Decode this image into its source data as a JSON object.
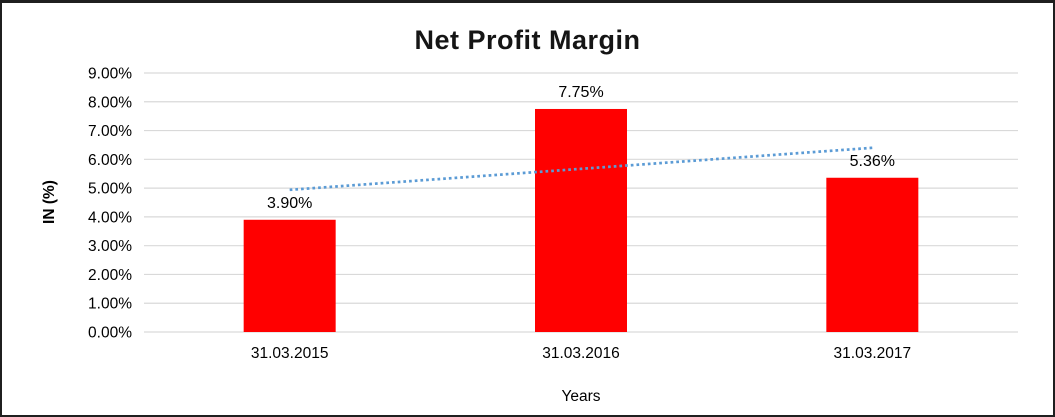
{
  "chart_data": {
    "type": "bar",
    "title": "Net Profit Margin",
    "xlabel": "Years",
    "ylabel": "IN (%)",
    "categories": [
      "31.03.2015",
      "31.03.2016",
      "31.03.2017"
    ],
    "values": [
      3.9,
      7.75,
      5.36
    ],
    "data_labels": [
      "3.90%",
      "7.75%",
      "5.36%"
    ],
    "y_tick_values": [
      0,
      1,
      2,
      3,
      4,
      5,
      6,
      7,
      8,
      9
    ],
    "y_tick_labels": [
      "0.00%",
      "1.00%",
      "2.00%",
      "3.00%",
      "4.00%",
      "5.00%",
      "6.00%",
      "7.00%",
      "8.00%",
      "9.00%"
    ],
    "ylim": [
      0,
      9
    ],
    "grid": true,
    "legend": "none",
    "bar_color": "#FF0000",
    "gridline_color": "#D9D9D9",
    "text_color": "#000000",
    "trendline": {
      "type": "linear",
      "style": "dotted",
      "color": "#5B9BD5",
      "start_value": 4.94,
      "end_value": 6.4
    }
  }
}
